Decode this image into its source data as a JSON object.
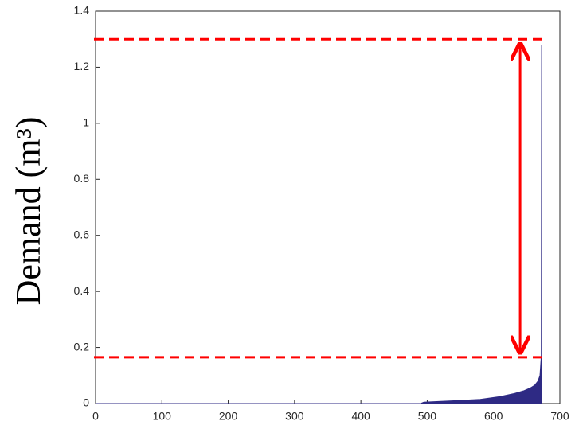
{
  "chart_data": {
    "type": "area",
    "ylabel": "Demand (m³)",
    "x": [
      0,
      490,
      495,
      540,
      580,
      610,
      630,
      645,
      655,
      662,
      667,
      670,
      672,
      672.5
    ],
    "series": [
      {
        "color": "#2e2a84",
        "values": [
          0,
          0,
          0.005,
          0.01,
          0.015,
          0.025,
          0.035,
          0.045,
          0.055,
          0.065,
          0.08,
          0.1,
          0.17,
          1.28
        ]
      }
    ],
    "xlim": [
      0,
      700
    ],
    "xticks": [
      0,
      100,
      200,
      300,
      400,
      500,
      600,
      700
    ],
    "ylim": [
      0,
      1.4
    ],
    "yticks": [
      0,
      0.2,
      0.4,
      0.6,
      0.8,
      1,
      1.2,
      1.4
    ],
    "hlines": [
      1.3,
      0.165
    ],
    "hline_color": "#ff0000"
  }
}
